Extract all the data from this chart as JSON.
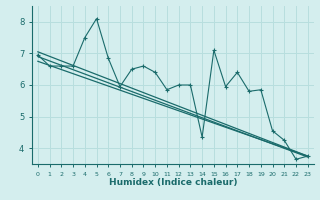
{
  "xlabel": "Humidex (Indice chaleur)",
  "background_color": "#d4eeee",
  "grid_color": "#b8dede",
  "line_color": "#1a6b6b",
  "x_data": [
    0,
    1,
    2,
    3,
    4,
    5,
    6,
    7,
    8,
    9,
    10,
    11,
    12,
    13,
    14,
    15,
    16,
    17,
    18,
    19,
    20,
    21,
    22,
    23
  ],
  "series1": [
    6.95,
    6.6,
    6.6,
    6.6,
    7.5,
    8.1,
    6.85,
    5.95,
    6.5,
    6.6,
    6.4,
    5.85,
    6.0,
    6.0,
    4.35,
    7.1,
    5.95,
    6.4,
    5.8,
    5.85,
    4.55,
    4.25,
    3.65,
    3.75
  ],
  "trend1_x": [
    0,
    23
  ],
  "trend1_y": [
    7.05,
    3.75
  ],
  "trend2_x": [
    0,
    23
  ],
  "trend2_y": [
    6.75,
    3.75
  ],
  "trend3_x": [
    0,
    23
  ],
  "trend3_y": [
    6.9,
    3.72
  ],
  "ylim": [
    3.5,
    8.5
  ],
  "xlim": [
    -0.5,
    23.5
  ],
  "yticks": [
    4,
    5,
    6,
    7,
    8
  ],
  "xticks": [
    0,
    1,
    2,
    3,
    4,
    5,
    6,
    7,
    8,
    9,
    10,
    11,
    12,
    13,
    14,
    15,
    16,
    17,
    18,
    19,
    20,
    21,
    22,
    23
  ]
}
